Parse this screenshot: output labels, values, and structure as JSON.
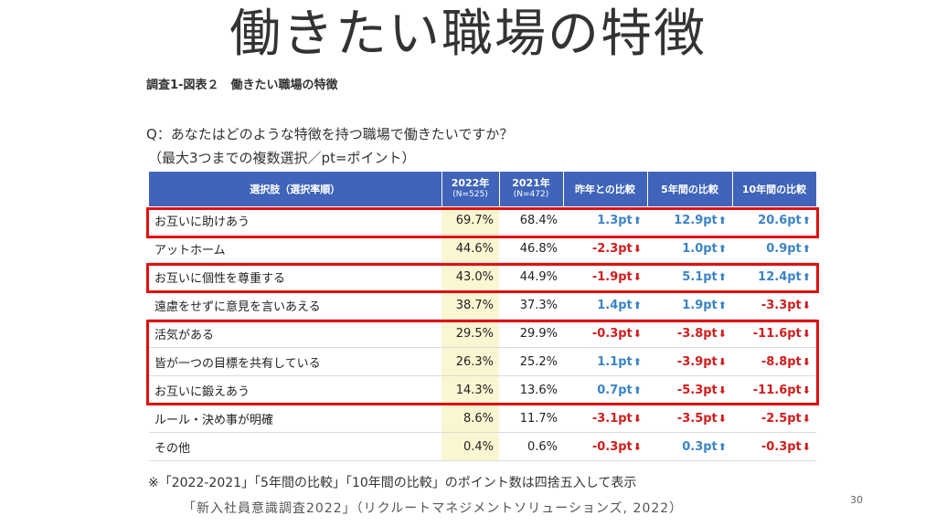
{
  "title": "働きたい職場の特徴",
  "figure_label": "調査1-図表２　働きたい職場の特徴",
  "question": "Q：あなたはどのような特徴を持つ職場で働きたいですか？",
  "instruction": "（最大3つまでの複数選択／pt=ポイント）",
  "table": {
    "headers": {
      "item": "選択肢（選択率順）",
      "y2022": "2022年",
      "y2022_sub": "(N=525)",
      "y2021": "2021年",
      "y2021_sub": "(N=472)",
      "diff_prev": "昨年との比較",
      "diff_5y": "5年間の比較",
      "diff_10y": "10年間の比較"
    },
    "rows": [
      {
        "item": "お互いに助けあう",
        "v2022": "69.7%",
        "v2021": "68.4%",
        "d1": "1.3pt",
        "d1_dir": "up",
        "d5": "12.9pt",
        "d5_dir": "up",
        "d10": "20.6pt",
        "d10_dir": "up"
      },
      {
        "item": "アットホーム",
        "v2022": "44.6%",
        "v2021": "46.8%",
        "d1": "-2.3pt",
        "d1_dir": "down",
        "d5": "1.0pt",
        "d5_dir": "up",
        "d10": "0.9pt",
        "d10_dir": "up"
      },
      {
        "item": "お互いに個性を尊重する",
        "v2022": "43.0%",
        "v2021": "44.9%",
        "d1": "-1.9pt",
        "d1_dir": "down",
        "d5": "5.1pt",
        "d5_dir": "up",
        "d10": "12.4pt",
        "d10_dir": "up"
      },
      {
        "item": "遠慮をせずに意見を言いあえる",
        "v2022": "38.7%",
        "v2021": "37.3%",
        "d1": "1.4pt",
        "d1_dir": "up",
        "d5": "1.9pt",
        "d5_dir": "up",
        "d10": "-3.3pt",
        "d10_dir": "down"
      },
      {
        "item": "活気がある",
        "v2022": "29.5%",
        "v2021": "29.9%",
        "d1": "-0.3pt",
        "d1_dir": "down",
        "d5": "-3.8pt",
        "d5_dir": "down",
        "d10": "-11.6pt",
        "d10_dir": "down"
      },
      {
        "item": "皆が一つの目標を共有している",
        "v2022": "26.3%",
        "v2021": "25.2%",
        "d1": "1.1pt",
        "d1_dir": "up",
        "d5": "-3.9pt",
        "d5_dir": "down",
        "d10": "-8.8pt",
        "d10_dir": "down"
      },
      {
        "item": "お互いに鍛えあう",
        "v2022": "14.3%",
        "v2021": "13.6%",
        "d1": "0.7pt",
        "d1_dir": "up",
        "d5": "-5.3pt",
        "d5_dir": "down",
        "d10": "-11.6pt",
        "d10_dir": "down"
      },
      {
        "item": "ルール・決め事が明確",
        "v2022": "8.6%",
        "v2021": "11.7%",
        "d1": "-3.1pt",
        "d1_dir": "down",
        "d5": "-3.5pt",
        "d5_dir": "down",
        "d10": "-2.5pt",
        "d10_dir": "down"
      },
      {
        "item": "その他",
        "v2022": "0.4%",
        "v2021": "0.6%",
        "d1": "-0.3pt",
        "d1_dir": "down",
        "d5": "0.3pt",
        "d5_dir": "up",
        "d10": "-0.3pt",
        "d10_dir": "down"
      }
    ]
  },
  "footnote": "※「2022-2021」「5年間の比較」「10年間の比較」のポイント数は四捨五入して表示",
  "source": "「新入社員意識調査2022」（リクルートマネジメントソリューションズ, 2022）",
  "page_number": "30",
  "colors": {
    "header_bg": "#3f64b9",
    "highlight_2022": "#fbf6d2",
    "up": "#3b84c4",
    "down": "#d11d1d",
    "frame": "#e01010"
  }
}
